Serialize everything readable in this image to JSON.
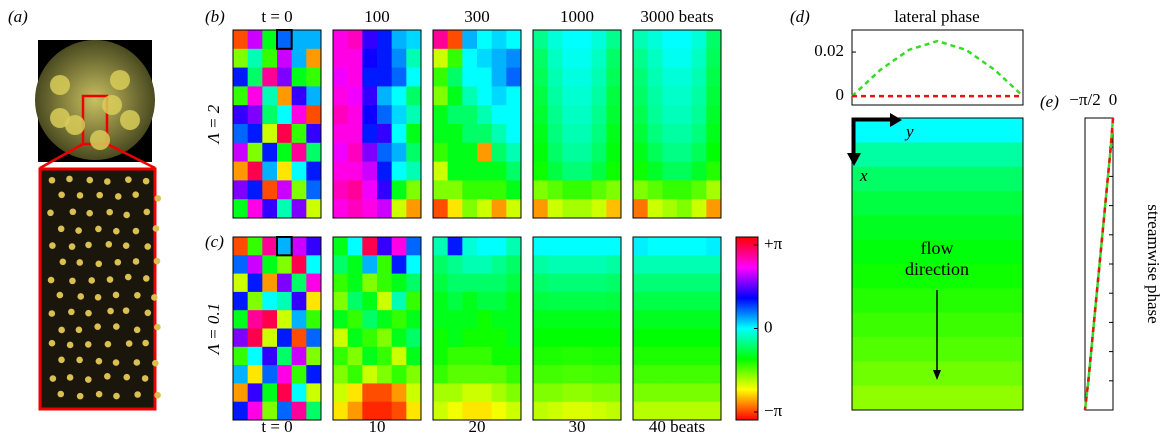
{
  "panel_a": {
    "label": "(a)"
  },
  "chart_data": [
    {
      "type": "heatmap",
      "panel_label": "(b)",
      "row_label": "Λ = 2",
      "columns": [
        {
          "label": "t = 0",
          "values": [
            [
              -0.9,
              0.6,
              -0.3,
              0.2,
              0.1,
              0.1
            ],
            [
              -0.5,
              -0.1,
              -0.4,
              0.6,
              0.1,
              -0.8
            ],
            [
              0.3,
              -0.2,
              0.8,
              0.5,
              -0.3,
              -0.4
            ],
            [
              -0.4,
              0.7,
              -0.1,
              -0.8,
              0.4,
              0.1
            ],
            [
              0.4,
              0.5,
              -0.2,
              0.0,
              0.7,
              -0.9
            ],
            [
              0.2,
              0.3,
              -0.6,
              0.9,
              -0.4,
              0.4
            ],
            [
              0.6,
              -0.5,
              0.3,
              -0.3,
              0.8,
              -0.2
            ],
            [
              -0.8,
              0.9,
              0.1,
              -0.7,
              0.0,
              0.3
            ],
            [
              0.5,
              0.3,
              -0.9,
              0.6,
              -0.5,
              0.2
            ],
            [
              -0.3,
              0.7,
              0.4,
              -0.1,
              0.5,
              -0.6
            ]
          ]
        },
        {
          "label": "100",
          "values": [
            [
              0.7,
              0.75,
              0.4,
              0.3,
              0.1,
              0.05
            ],
            [
              0.7,
              0.7,
              0.35,
              0.3,
              0.15,
              -0.1
            ],
            [
              0.65,
              0.7,
              0.3,
              0.3,
              0.2,
              0.0
            ],
            [
              0.7,
              0.65,
              0.4,
              0.1,
              0.0,
              -0.2
            ],
            [
              0.75,
              0.7,
              0.35,
              0.2,
              0.05,
              -0.1
            ],
            [
              0.7,
              0.7,
              0.3,
              0.4,
              0.0,
              -0.3
            ],
            [
              0.65,
              0.75,
              0.5,
              0.2,
              0.1,
              -0.2
            ],
            [
              0.7,
              0.7,
              0.6,
              0.3,
              0.0,
              -0.1
            ],
            [
              0.75,
              0.8,
              0.65,
              0.4,
              -0.3,
              -0.5
            ],
            [
              0.7,
              0.75,
              0.7,
              0.6,
              -0.6,
              -0.8
            ]
          ]
        },
        {
          "label": "300",
          "values": [
            [
              0.8,
              -0.9,
              0.1,
              0.0,
              0.05,
              0.0
            ],
            [
              -0.6,
              -0.4,
              0.0,
              0.05,
              0.1,
              0.15
            ],
            [
              -0.4,
              -0.2,
              0.0,
              0.0,
              0.1,
              0.2
            ],
            [
              -0.5,
              -0.3,
              -0.1,
              0.0,
              0.05,
              0.0
            ],
            [
              -0.3,
              -0.2,
              -0.2,
              -0.1,
              0.0,
              0.0
            ],
            [
              -0.3,
              -0.3,
              -0.2,
              -0.2,
              -0.1,
              0.0
            ],
            [
              -0.4,
              -0.3,
              -0.3,
              -0.8,
              -0.2,
              -0.1
            ],
            [
              -0.6,
              -0.3,
              -0.3,
              -0.3,
              -0.3,
              -0.2
            ],
            [
              -0.5,
              -0.5,
              -0.4,
              -0.4,
              -0.4,
              -0.3
            ],
            [
              -0.9,
              -0.7,
              -0.5,
              -0.6,
              -0.8,
              -0.6
            ]
          ]
        },
        {
          "label": "1000",
          "values": [
            [
              -0.15,
              -0.05,
              0.0,
              0.0,
              -0.05,
              -0.15
            ],
            [
              -0.2,
              -0.08,
              -0.02,
              -0.02,
              -0.08,
              -0.2
            ],
            [
              -0.22,
              -0.1,
              -0.04,
              -0.04,
              -0.1,
              -0.22
            ],
            [
              -0.25,
              -0.12,
              -0.06,
              -0.06,
              -0.12,
              -0.25
            ],
            [
              -0.27,
              -0.15,
              -0.08,
              -0.08,
              -0.15,
              -0.27
            ],
            [
              -0.3,
              -0.17,
              -0.1,
              -0.1,
              -0.17,
              -0.3
            ],
            [
              -0.32,
              -0.2,
              -0.13,
              -0.13,
              -0.2,
              -0.32
            ],
            [
              -0.35,
              -0.25,
              -0.18,
              -0.18,
              -0.25,
              -0.35
            ],
            [
              -0.5,
              -0.45,
              -0.4,
              -0.4,
              -0.45,
              -0.5
            ],
            [
              -0.8,
              -0.6,
              -0.55,
              -0.55,
              -0.6,
              -0.75
            ]
          ]
        },
        {
          "label": "3000 beats",
          "values": [
            [
              -0.1,
              -0.05,
              0.0,
              0.0,
              -0.05,
              -0.2
            ],
            [
              -0.15,
              -0.08,
              -0.02,
              -0.02,
              -0.08,
              -0.22
            ],
            [
              -0.18,
              -0.1,
              -0.05,
              -0.05,
              -0.1,
              -0.24
            ],
            [
              -0.2,
              -0.12,
              -0.07,
              -0.07,
              -0.12,
              -0.26
            ],
            [
              -0.23,
              -0.14,
              -0.09,
              -0.09,
              -0.14,
              -0.28
            ],
            [
              -0.26,
              -0.17,
              -0.12,
              -0.12,
              -0.17,
              -0.3
            ],
            [
              -0.3,
              -0.22,
              -0.16,
              -0.16,
              -0.22,
              -0.33
            ],
            [
              -0.35,
              -0.28,
              -0.22,
              -0.22,
              -0.28,
              -0.38
            ],
            [
              -0.5,
              -0.45,
              -0.4,
              -0.4,
              -0.45,
              -0.55
            ],
            [
              -0.85,
              -0.6,
              -0.55,
              -0.5,
              -0.6,
              -0.8
            ]
          ]
        }
      ]
    },
    {
      "type": "heatmap",
      "panel_label": "(c)",
      "row_label": "Λ = 0.1",
      "columns": [
        {
          "label": "t = 0",
          "values": [
            [
              -0.9,
              -0.4,
              0.8,
              0.1,
              0.6,
              0.4
            ],
            [
              0.2,
              0.6,
              -0.3,
              -0.5,
              0.9,
              0.0
            ],
            [
              -0.6,
              0.3,
              -0.8,
              0.5,
              -0.2,
              0.7
            ],
            [
              0.3,
              -0.5,
              0.0,
              -0.1,
              0.4,
              -0.7
            ],
            [
              -0.3,
              0.8,
              0.9,
              -0.6,
              0.1,
              -0.4
            ],
            [
              0.5,
              0.9,
              -0.6,
              0.3,
              -0.9,
              0.2
            ],
            [
              -0.4,
              0.0,
              0.4,
              -0.2,
              0.6,
              -0.5
            ],
            [
              0.1,
              -0.7,
              0.2,
              0.7,
              -0.4,
              0.3
            ],
            [
              -0.8,
              0.4,
              -0.3,
              0.9,
              0.0,
              -0.6
            ],
            [
              0.3,
              0.7,
              -0.5,
              0.2,
              0.8,
              -0.2
            ]
          ]
        },
        {
          "label": "10",
          "values": [
            [
              -0.3,
              0.0,
              0.9,
              0.4,
              0.7,
              0.2
            ],
            [
              -0.2,
              -0.3,
              0.1,
              -0.4,
              0.3,
              0.0
            ],
            [
              -0.4,
              -0.3,
              -0.5,
              -0.4,
              -0.3,
              -0.2
            ],
            [
              -0.5,
              -0.2,
              -0.3,
              -0.6,
              -0.1,
              -0.4
            ],
            [
              -0.3,
              -0.4,
              -0.2,
              -0.3,
              -0.4,
              -0.3
            ],
            [
              -0.6,
              -0.3,
              -0.4,
              -0.5,
              -0.3,
              -0.2
            ],
            [
              -0.4,
              -0.5,
              -0.3,
              -0.4,
              -0.6,
              -0.3
            ],
            [
              -0.5,
              -0.4,
              -0.6,
              -0.5,
              -0.4,
              -0.5
            ],
            [
              -0.6,
              -0.7,
              -0.9,
              -0.9,
              -0.8,
              -0.6
            ],
            [
              -0.7,
              -0.8,
              -0.95,
              -0.95,
              -0.9,
              -0.7
            ]
          ]
        },
        {
          "label": "20",
          "values": [
            [
              -0.1,
              0.3,
              -0.05,
              0.0,
              0.0,
              -0.1
            ],
            [
              -0.2,
              -0.15,
              -0.1,
              -0.1,
              -0.15,
              -0.2
            ],
            [
              -0.25,
              -0.2,
              -0.2,
              -0.2,
              -0.2,
              -0.25
            ],
            [
              -0.3,
              -0.25,
              -0.3,
              -0.25,
              -0.25,
              -0.3
            ],
            [
              -0.3,
              -0.3,
              -0.3,
              -0.35,
              -0.3,
              -0.3
            ],
            [
              -0.35,
              -0.3,
              -0.35,
              -0.35,
              -0.35,
              -0.3
            ],
            [
              -0.35,
              -0.4,
              -0.4,
              -0.4,
              -0.35,
              -0.35
            ],
            [
              -0.4,
              -0.45,
              -0.45,
              -0.45,
              -0.45,
              -0.4
            ],
            [
              -0.55,
              -0.55,
              -0.6,
              -0.6,
              -0.55,
              -0.5
            ],
            [
              -0.6,
              -0.65,
              -0.7,
              -0.7,
              -0.65,
              -0.6
            ]
          ]
        },
        {
          "label": "30",
          "values": [
            [
              0.0,
              0.0,
              0.0,
              0.0,
              0.0,
              0.0
            ],
            [
              -0.12,
              -0.1,
              -0.1,
              -0.1,
              -0.1,
              -0.12
            ],
            [
              -0.2,
              -0.18,
              -0.18,
              -0.18,
              -0.18,
              -0.2
            ],
            [
              -0.25,
              -0.24,
              -0.24,
              -0.24,
              -0.24,
              -0.25
            ],
            [
              -0.3,
              -0.3,
              -0.3,
              -0.3,
              -0.3,
              -0.3
            ],
            [
              -0.33,
              -0.33,
              -0.33,
              -0.33,
              -0.33,
              -0.33
            ],
            [
              -0.37,
              -0.37,
              -0.38,
              -0.38,
              -0.37,
              -0.37
            ],
            [
              -0.42,
              -0.42,
              -0.43,
              -0.43,
              -0.42,
              -0.42
            ],
            [
              -0.5,
              -0.5,
              -0.52,
              -0.52,
              -0.5,
              -0.5
            ],
            [
              -0.58,
              -0.6,
              -0.62,
              -0.62,
              -0.6,
              -0.58
            ]
          ]
        },
        {
          "label": "40 beats",
          "values": [
            [
              0.02,
              0.0,
              0.0,
              0.0,
              0.0,
              0.02
            ],
            [
              -0.1,
              -0.1,
              -0.1,
              -0.1,
              -0.1,
              -0.1
            ],
            [
              -0.18,
              -0.18,
              -0.18,
              -0.18,
              -0.18,
              -0.18
            ],
            [
              -0.24,
              -0.24,
              -0.24,
              -0.24,
              -0.24,
              -0.24
            ],
            [
              -0.29,
              -0.29,
              -0.29,
              -0.29,
              -0.29,
              -0.29
            ],
            [
              -0.33,
              -0.33,
              -0.33,
              -0.33,
              -0.33,
              -0.33
            ],
            [
              -0.37,
              -0.37,
              -0.37,
              -0.37,
              -0.37,
              -0.37
            ],
            [
              -0.42,
              -0.42,
              -0.42,
              -0.42,
              -0.42,
              -0.42
            ],
            [
              -0.49,
              -0.49,
              -0.49,
              -0.49,
              -0.49,
              -0.49
            ],
            [
              -0.57,
              -0.57,
              -0.57,
              -0.57,
              -0.57,
              -0.57
            ]
          ]
        }
      ],
      "colorbar": {
        "lim": [
          -1,
          1
        ],
        "ticks": [
          {
            "value": 1,
            "label": "+π"
          },
          0,
          {
            "value": -1,
            "label": "−π"
          }
        ]
      }
    },
    {
      "type": "line",
      "panel_label": "(d)",
      "title": "lateral phase",
      "series": [
        {
          "color": "#33dd22",
          "values": [
            0,
            0.012,
            0.021,
            0.025,
            0.021,
            0.012,
            0
          ]
        },
        {
          "color": "#ee1111",
          "values": [
            0,
            0,
            0,
            0,
            0,
            0,
            0
          ]
        }
      ],
      "ylim": [
        -0.004,
        0.03
      ],
      "yticks": [
        0,
        0.02
      ]
    },
    {
      "type": "profile",
      "x_label": "x",
      "y_label": "y",
      "annotation": "flow direction",
      "values": [
        0.0,
        -0.12,
        -0.2,
        -0.25,
        -0.29,
        -0.32,
        -0.35,
        -0.38,
        -0.41,
        -0.44,
        -0.48,
        -0.52
      ]
    },
    {
      "type": "streamwise",
      "panel_label": "(e)",
      "y_label": "streamwise phase",
      "xlim": [
        -0.5,
        0
      ],
      "xticks": [
        {
          "value": -0.5,
          "label": "−π/2"
        },
        0
      ],
      "series": [
        {
          "color": "#33dd22",
          "values": [
            0,
            -0.04,
            -0.09,
            -0.14,
            -0.19,
            -0.24,
            -0.29,
            -0.34,
            -0.39,
            -0.44,
            -0.5
          ]
        },
        {
          "color": "#ee1111",
          "values": [
            0,
            -0.04,
            -0.09,
            -0.14,
            -0.19,
            -0.24,
            -0.29,
            -0.34,
            -0.39,
            -0.44,
            -0.5
          ]
        }
      ]
    }
  ]
}
